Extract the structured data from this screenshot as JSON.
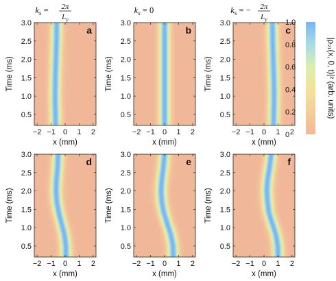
{
  "figure": {
    "column_headers": [
      {
        "prefix": "k",
        "sub": "s",
        "eq": " = ",
        "sign": "",
        "num": "2π",
        "den": "L",
        "den_sub": "y"
      },
      {
        "prefix": "k",
        "sub": "s",
        "eq": " = 0",
        "sign": "",
        "num": "",
        "den": "",
        "den_sub": ""
      },
      {
        "prefix": "k",
        "sub": "s",
        "eq": " = ",
        "sign": "−",
        "num": "2π",
        "den": "L",
        "den_sub": "y"
      }
    ],
    "colorbar": {
      "label": "|ρ₂₁(x, 0, t)|² (arb. units)",
      "ticks": [
        "1.0",
        "0.8",
        "0.6",
        "0.4",
        "0.2",
        "0"
      ],
      "tick_values": [
        1.0,
        0.8,
        0.6,
        0.4,
        0.2,
        0.0
      ],
      "colors": [
        "#f0b899",
        "#f3cd9c",
        "#f4e29b",
        "#dceeb0",
        "#a9dbe4",
        "#78b6f0"
      ]
    }
  },
  "chart_data": [
    {
      "type": "heatmap",
      "panel": "a",
      "row": 0,
      "col": 0,
      "xlabel": "x (mm)",
      "ylabel": "Time (ms)",
      "xlim": [
        -2.2,
        2.2
      ],
      "ylim": [
        0.2,
        3.0
      ],
      "xticks": [
        "−2",
        "−1",
        "0",
        "1",
        "2"
      ],
      "yticks": [
        "0.5",
        "1.0",
        "1.5",
        "2.0",
        "2.5",
        "3.0"
      ],
      "center": [
        [
          0.2,
          -0.68
        ],
        [
          0.6,
          -0.7
        ],
        [
          1.0,
          -0.72
        ],
        [
          1.5,
          -0.7
        ],
        [
          2.0,
          -0.66
        ],
        [
          2.5,
          -0.62
        ],
        [
          3.0,
          -0.6
        ]
      ],
      "peak_value": 1.0
    },
    {
      "type": "heatmap",
      "panel": "b",
      "row": 0,
      "col": 1,
      "xlabel": "x (mm)",
      "ylabel": "Time (ms)",
      "xlim": [
        -2.2,
        2.2
      ],
      "ylim": [
        0.2,
        3.0
      ],
      "xticks": [
        "−2",
        "−1",
        "0",
        "1",
        "2"
      ],
      "yticks": [
        "0.5",
        "1.0",
        "1.5",
        "2.0",
        "2.5",
        "3.0"
      ],
      "center": [
        [
          0.2,
          0.0
        ],
        [
          3.0,
          0.0
        ]
      ],
      "peak_value": 1.0
    },
    {
      "type": "heatmap",
      "panel": "c",
      "row": 0,
      "col": 2,
      "xlabel": "x (mm)",
      "ylabel": "Time (ms)",
      "xlim": [
        -2.2,
        2.2
      ],
      "ylim": [
        0.2,
        3.0
      ],
      "xticks": [
        "−2",
        "−1",
        "0",
        "1",
        "2"
      ],
      "yticks": [
        "0.5",
        "1.0",
        "1.5",
        "2.0",
        "2.5",
        "3.0"
      ],
      "center": [
        [
          0.2,
          0.68
        ],
        [
          0.6,
          0.7
        ],
        [
          1.0,
          0.72
        ],
        [
          1.5,
          0.7
        ],
        [
          2.0,
          0.66
        ],
        [
          2.5,
          0.62
        ],
        [
          3.0,
          0.6
        ]
      ],
      "peak_value": 1.0
    },
    {
      "type": "heatmap",
      "panel": "d",
      "row": 1,
      "col": 0,
      "xlabel": "x (mm)",
      "ylabel": "Time (ms)",
      "xlim": [
        -2.2,
        2.2
      ],
      "ylim": [
        0.2,
        3.0
      ],
      "xticks": [
        "−2",
        "−1",
        "0",
        "1",
        "2"
      ],
      "yticks": [
        "0.5",
        "1.0",
        "1.5",
        "2.0",
        "2.5",
        "3.0"
      ],
      "center": [
        [
          0.2,
          0.05
        ],
        [
          0.5,
          0.05
        ],
        [
          0.8,
          -0.05
        ],
        [
          1.1,
          -0.25
        ],
        [
          1.4,
          -0.45
        ],
        [
          1.7,
          -0.6
        ],
        [
          2.0,
          -0.65
        ],
        [
          2.3,
          -0.62
        ],
        [
          2.6,
          -0.55
        ],
        [
          3.0,
          -0.5
        ]
      ],
      "peak_value": 1.0
    },
    {
      "type": "heatmap",
      "panel": "e",
      "row": 1,
      "col": 1,
      "xlabel": "x (mm)",
      "ylabel": "Time (ms)",
      "xlim": [
        -2.2,
        2.2
      ],
      "ylim": [
        0.2,
        3.0
      ],
      "xticks": [
        "−2",
        "−1",
        "0",
        "1",
        "2"
      ],
      "yticks": [
        "0.5",
        "1.0",
        "1.5",
        "2.0",
        "2.5",
        "3.0"
      ],
      "center": [
        [
          0.2,
          0.62
        ],
        [
          0.5,
          0.6
        ],
        [
          0.8,
          0.45
        ],
        [
          1.1,
          0.2
        ],
        [
          1.4,
          -0.05
        ],
        [
          1.7,
          -0.2
        ],
        [
          2.0,
          -0.25
        ],
        [
          2.3,
          -0.2
        ],
        [
          2.6,
          -0.1
        ],
        [
          3.0,
          0.0
        ]
      ],
      "peak_value": 1.0
    },
    {
      "type": "heatmap",
      "panel": "f",
      "row": 1,
      "col": 2,
      "xlabel": "x (mm)",
      "ylabel": "Time (ms)",
      "xlim": [
        -2.2,
        2.2
      ],
      "ylim": [
        0.2,
        3.0
      ],
      "xticks": [
        "−2",
        "−1",
        "0",
        "1",
        "2"
      ],
      "yticks": [
        "0.5",
        "1.0",
        "1.5",
        "2.0",
        "2.5",
        "3.0"
      ],
      "center": [
        [
          0.2,
          1.0
        ],
        [
          0.5,
          0.98
        ],
        [
          0.8,
          0.85
        ],
        [
          1.1,
          0.6
        ],
        [
          1.4,
          0.35
        ],
        [
          1.7,
          0.25
        ],
        [
          2.0,
          0.2
        ],
        [
          2.3,
          0.25
        ],
        [
          2.6,
          0.38
        ],
        [
          3.0,
          0.52
        ]
      ],
      "peak_value": 1.0
    }
  ]
}
